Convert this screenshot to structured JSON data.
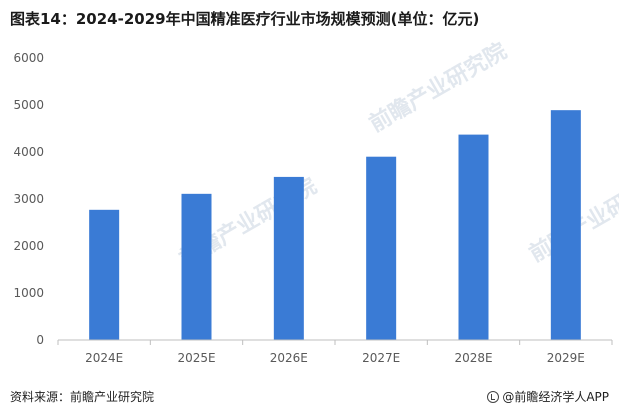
{
  "header": {
    "title": "图表14：2024-2029年中国精准医疗行业市场规模预测(单位：亿元)"
  },
  "footer": {
    "source": "资料来源：前瞻产业研究院",
    "brand": "@前瞻经济学人APP"
  },
  "watermark": {
    "text": "前瞻产业研究院"
  },
  "colors": {
    "bar": "#3A7BD5",
    "axis": "#bfbfbf",
    "tick_text": "#595959"
  },
  "chart_data": {
    "type": "bar",
    "title": "图表14：2024-2029年中国精准医疗行业市场规模预测(单位：亿元)",
    "categories": [
      "2024E",
      "2025E",
      "2026E",
      "2027E",
      "2028E",
      "2029E"
    ],
    "values": [
      2770,
      3110,
      3470,
      3900,
      4370,
      4890
    ],
    "ylim": [
      0,
      6000
    ],
    "yticks": [
      0,
      1000,
      2000,
      3000,
      4000,
      5000,
      6000
    ],
    "xlabel": "",
    "ylabel": "",
    "grid": false,
    "legend": "none"
  }
}
